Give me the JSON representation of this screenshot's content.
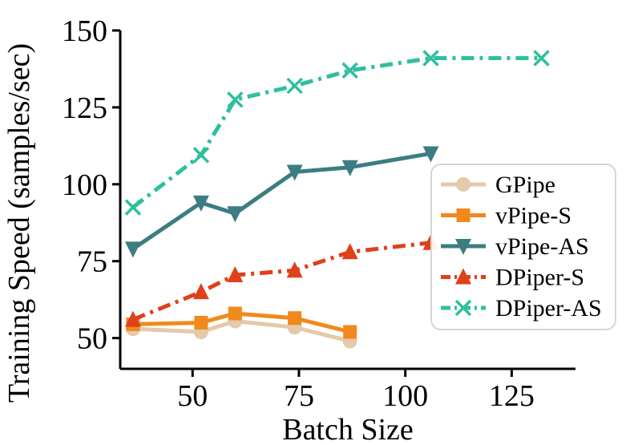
{
  "chart_data": {
    "type": "line",
    "title": "",
    "xlabel": "Batch Size",
    "ylabel": "Training Speed (samples/sec)",
    "xlim": [
      33,
      140
    ],
    "ylim": [
      40,
      150
    ],
    "xticks": [
      50,
      75,
      100,
      125
    ],
    "yticks": [
      50,
      75,
      100,
      125,
      150
    ],
    "grid": false,
    "legend": "right",
    "series": [
      {
        "name": "GPipe",
        "color": "#e4c9aa",
        "marker": "circle",
        "dash": "solid",
        "x": [
          36,
          52,
          60,
          74,
          87
        ],
        "y": [
          53,
          52,
          55.5,
          53.5,
          49
        ]
      },
      {
        "name": "vPipe-S",
        "color": "#f08a1c",
        "marker": "square",
        "dash": "solid",
        "x": [
          36,
          52,
          60,
          74,
          87
        ],
        "y": [
          54.5,
          55,
          58,
          56.5,
          52
        ]
      },
      {
        "name": "vPipe-AS",
        "color": "#3c7d82",
        "marker": "triangle-down",
        "dash": "solid",
        "x": [
          36,
          52,
          60,
          74,
          87,
          106
        ],
        "y": [
          79,
          94,
          90.5,
          104,
          105.5,
          110
        ]
      },
      {
        "name": "DPiper-S",
        "color": "#e0401a",
        "marker": "triangle-up",
        "dash": "dashdot",
        "x": [
          36,
          52,
          60,
          74,
          87,
          106
        ],
        "y": [
          56,
          65,
          70.5,
          72,
          78,
          81
        ]
      },
      {
        "name": "DPiper-AS",
        "color": "#2fbf9f",
        "marker": "x",
        "dash": "dashdot",
        "x": [
          36,
          52,
          60,
          74,
          87,
          106,
          132
        ],
        "y": [
          92.5,
          109.5,
          127.5,
          132,
          137,
          141,
          141
        ]
      }
    ]
  }
}
